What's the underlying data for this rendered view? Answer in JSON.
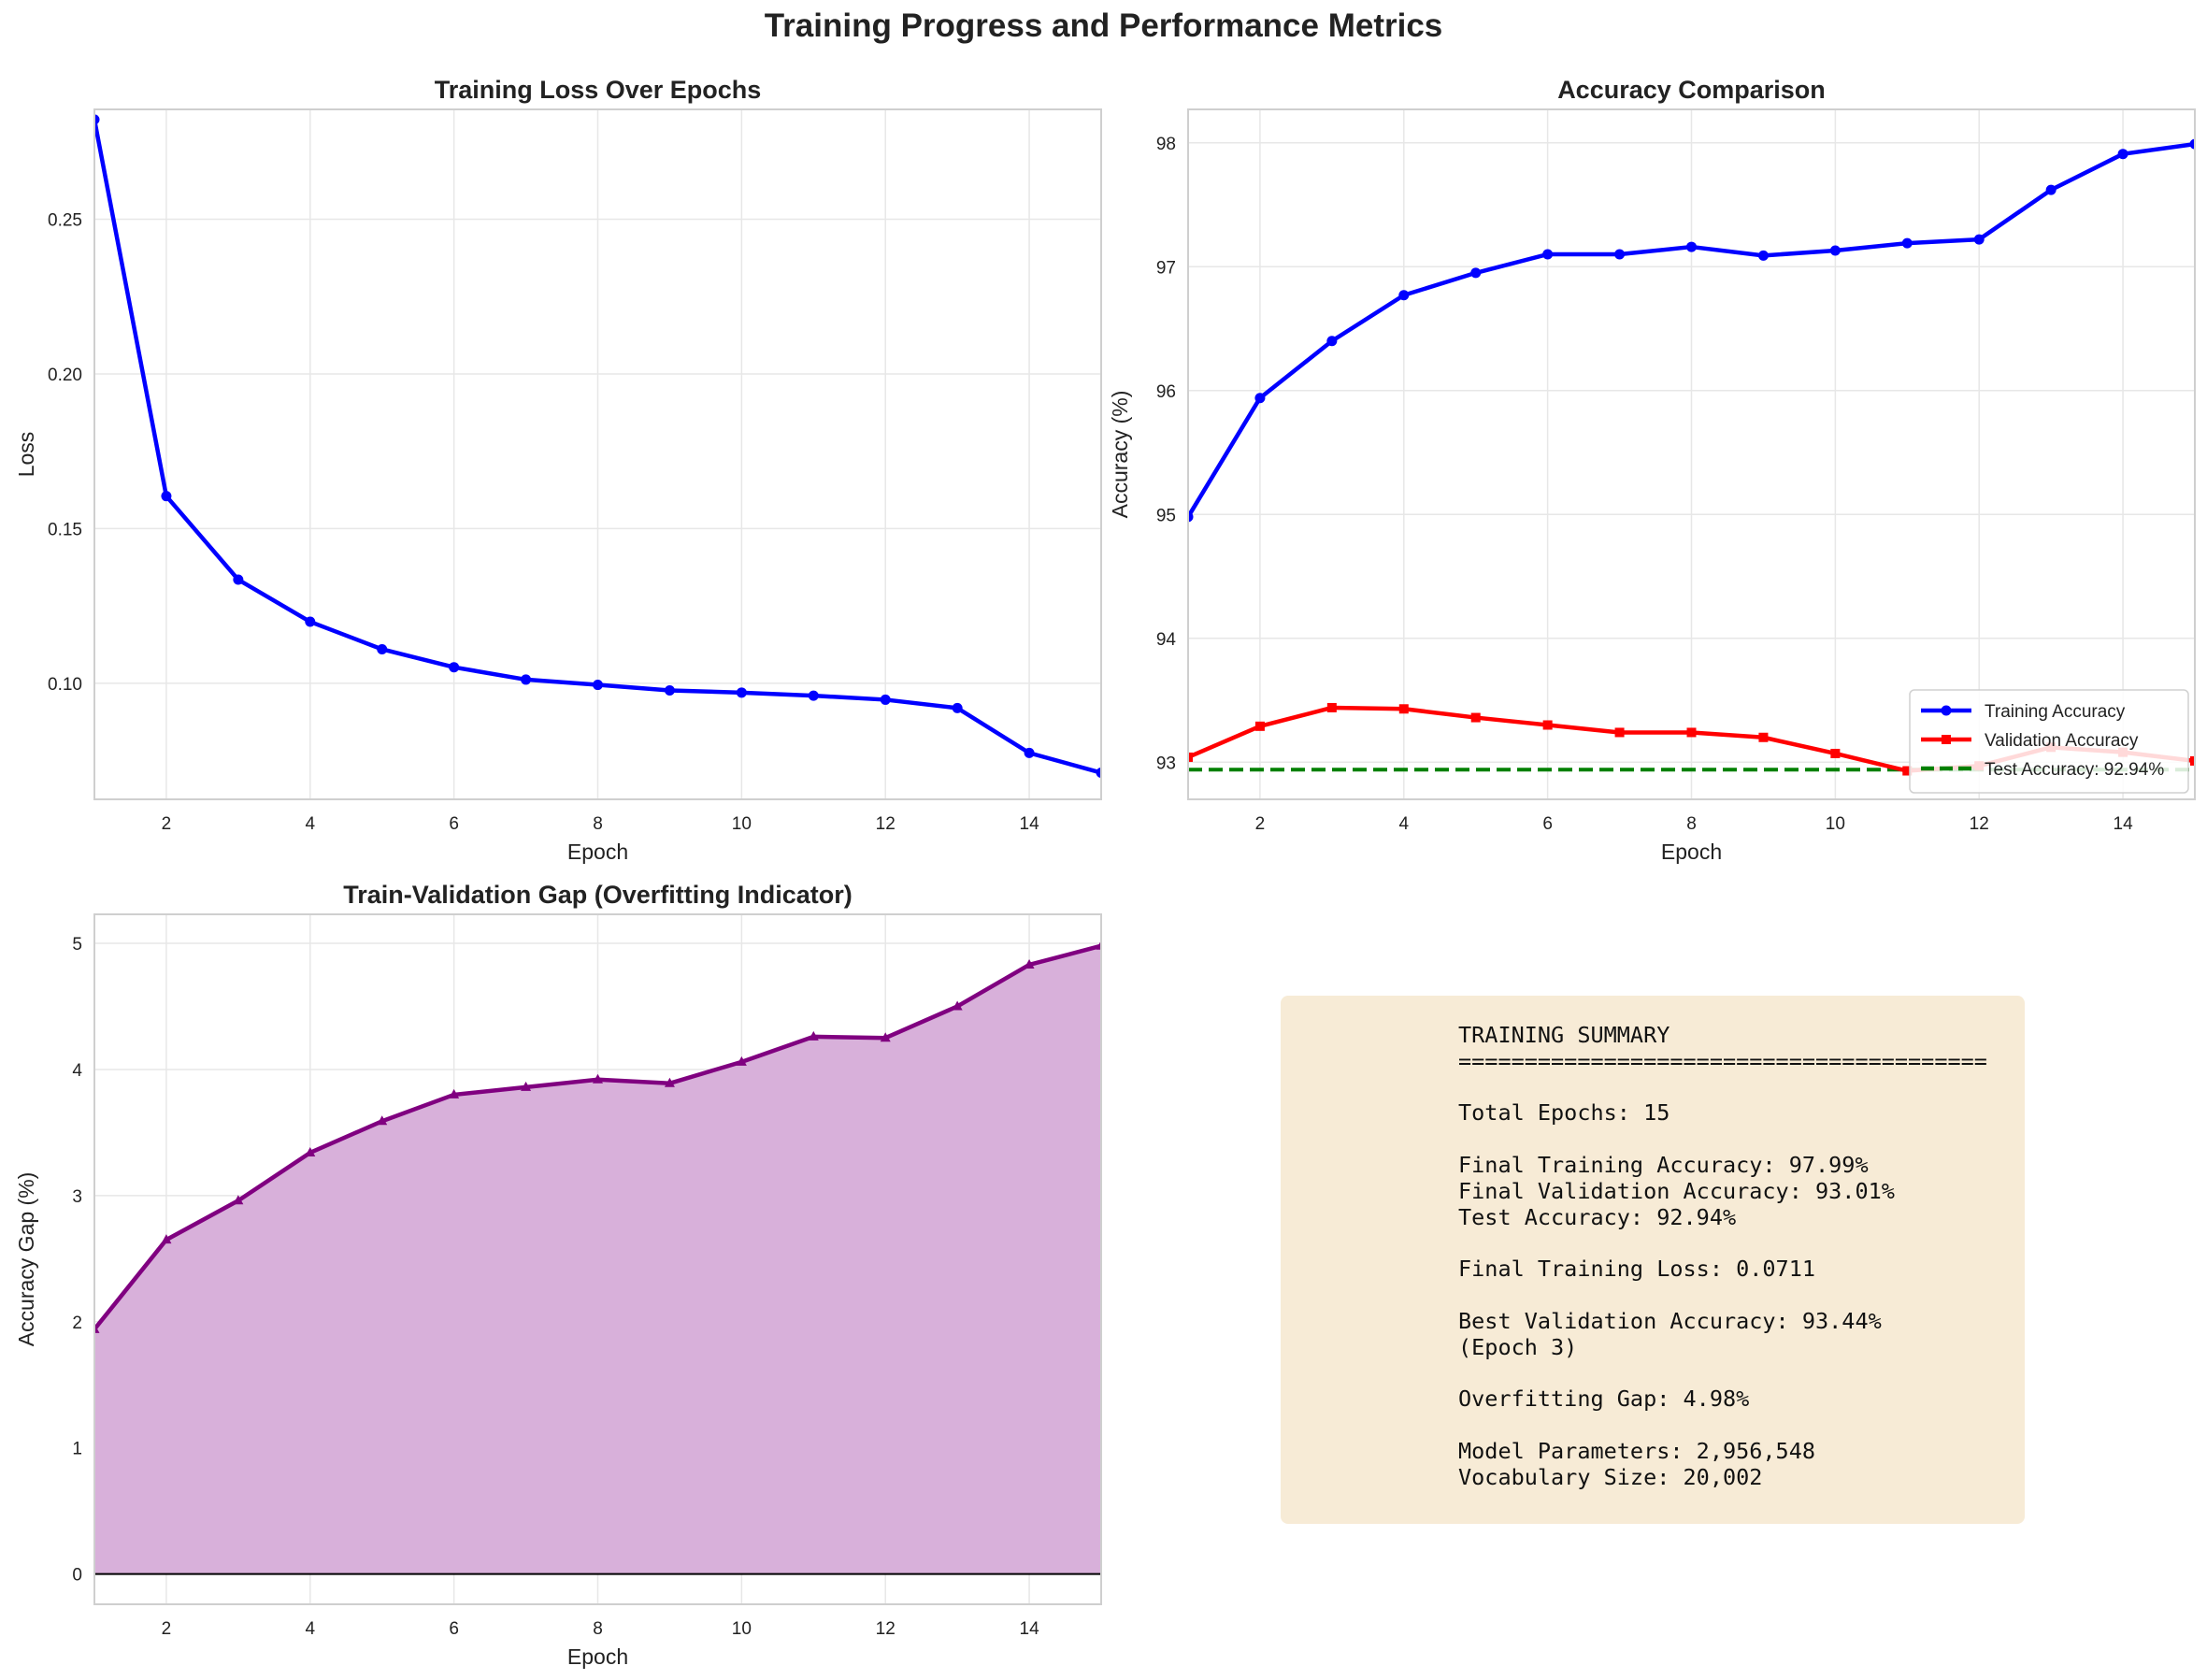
{
  "figure": {
    "title": "Training Progress and Performance Metrics",
    "colors": {
      "training": "#0000ff",
      "validation": "#ff0000",
      "test": "#008000",
      "gap": "#800080",
      "gap_fill": "#d8b0da",
      "grid": "#e6e6e6",
      "summary_bg": "#f7ebd6"
    }
  },
  "chart_data": [
    {
      "id": "loss",
      "type": "line",
      "title": "Training Loss Over Epochs",
      "xlabel": "Epoch",
      "ylabel": "Loss",
      "xlim": [
        1,
        15
      ],
      "ylim": [
        0.0625,
        0.2855
      ],
      "xticks": [
        2,
        4,
        6,
        8,
        10,
        12,
        14
      ],
      "yticks": [
        0.1,
        0.15,
        0.2,
        0.25
      ],
      "ytick_decimals": 2,
      "grid": true,
      "x": [
        1,
        2,
        3,
        4,
        5,
        6,
        7,
        8,
        9,
        10,
        11,
        12,
        13,
        14,
        15
      ],
      "series": [
        {
          "color": "#0000ff",
          "marker": "circle",
          "values": [
            0.2822,
            0.1605,
            0.1335,
            0.1199,
            0.111,
            0.1052,
            0.1012,
            0.0995,
            0.0977,
            0.097,
            0.096,
            0.0947,
            0.092,
            0.0775,
            0.0711
          ]
        }
      ]
    },
    {
      "id": "accuracy",
      "type": "line",
      "title": "Accuracy Comparison",
      "xlabel": "Epoch",
      "ylabel": "Accuracy (%)",
      "xlim": [
        1,
        15
      ],
      "ylim": [
        92.7,
        98.27
      ],
      "xticks": [
        2,
        4,
        6,
        8,
        10,
        12,
        14
      ],
      "yticks": [
        93,
        94,
        95,
        96,
        97,
        98
      ],
      "ytick_decimals": 0,
      "grid": true,
      "legend_position": "lower-right",
      "x": [
        1,
        2,
        3,
        4,
        5,
        6,
        7,
        8,
        9,
        10,
        11,
        12,
        13,
        14,
        15
      ],
      "series": [
        {
          "name": "Training Accuracy",
          "color": "#0000ff",
          "marker": "circle",
          "values": [
            94.98,
            95.94,
            96.4,
            96.77,
            96.95,
            97.1,
            97.1,
            97.16,
            97.09,
            97.13,
            97.19,
            97.22,
            97.62,
            97.91,
            97.99
          ]
        },
        {
          "name": "Validation Accuracy",
          "color": "#ff0000",
          "marker": "square",
          "values": [
            93.04,
            93.29,
            93.44,
            93.43,
            93.36,
            93.3,
            93.24,
            93.24,
            93.2,
            93.07,
            92.93,
            92.97,
            93.12,
            93.08,
            93.01
          ]
        }
      ],
      "hlines": [
        {
          "name": "Test Accuracy: 92.94%",
          "value": 92.94,
          "color": "#008000",
          "dash": true
        }
      ]
    },
    {
      "id": "gap",
      "type": "area",
      "title": "Train-Validation Gap (Overfitting Indicator)",
      "xlabel": "Epoch",
      "ylabel": "Accuracy Gap (%)",
      "xlim": [
        1,
        15
      ],
      "ylim": [
        -0.24,
        5.23
      ],
      "xticks": [
        2,
        4,
        6,
        8,
        10,
        12,
        14
      ],
      "yticks": [
        0,
        1,
        2,
        3,
        4,
        5
      ],
      "ytick_decimals": 0,
      "grid": true,
      "baseline": 0,
      "x": [
        1,
        2,
        3,
        4,
        5,
        6,
        7,
        8,
        9,
        10,
        11,
        12,
        13,
        14,
        15
      ],
      "series": [
        {
          "color": "#800080",
          "marker": "triangle",
          "values": [
            1.94,
            2.65,
            2.96,
            3.34,
            3.59,
            3.8,
            3.86,
            3.92,
            3.89,
            4.06,
            4.26,
            4.25,
            4.5,
            4.83,
            4.98
          ]
        }
      ]
    }
  ],
  "summary": {
    "text": "TRAINING SUMMARY\n========================================\n\nTotal Epochs: 15\n\nFinal Training Accuracy: 97.99%\nFinal Validation Accuracy: 93.01%\nTest Accuracy: 92.94%\n\nFinal Training Loss: 0.0711\n\nBest Validation Accuracy: 93.44%\n(Epoch 3)\n\nOverfitting Gap: 4.98%\n\nModel Parameters: 2,956,548\nVocabulary Size: 20,002"
  }
}
